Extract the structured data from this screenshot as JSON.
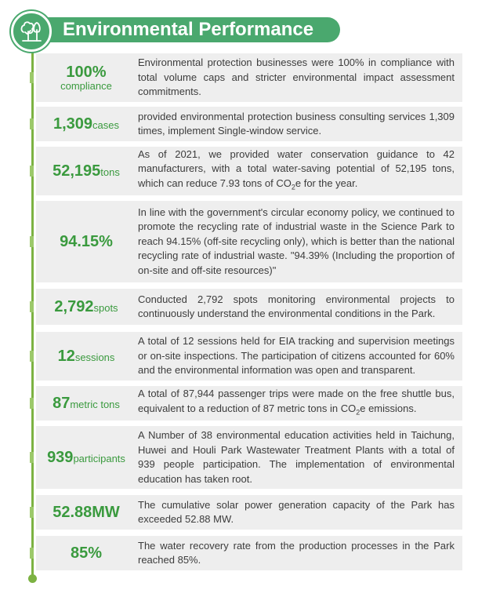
{
  "header": {
    "title": "Environmental Performance",
    "icon": "tree-icon"
  },
  "colors": {
    "accent_green": "#4aa86e",
    "metric_green": "#3a9a3e",
    "timeline_green": "#7cb242",
    "row_bg": "#eeeeee"
  },
  "rows": [
    {
      "value": "100%",
      "unit": "compliance",
      "text": "Environmental protection businesses were 100% in compliance with total volume caps and stricter environmental impact assessment commitments."
    },
    {
      "value": "1,309",
      "unit": "cases",
      "text": "provided environmental protection business consulting services 1,309 times, implement Single-window service."
    },
    {
      "value": "52,195",
      "unit": "tons",
      "text_pre": "As of 2021, we provided water conservation guidance to 42 manufacturers, with a total water-saving potential of 52,195 tons, which can reduce 7.93 tons of CO",
      "sub": "2",
      "text_post": "e for the year."
    },
    {
      "value": "94.15%",
      "unit": "",
      "text": "In line with the government's circular economy policy, we continued to promote the recycling rate of industrial waste in the Science Park to reach 94.15% (off-site recycling only), which is better than the national recycling rate of industrial waste. \"94.39% (Including the proportion of on-site and off-site resources)\""
    },
    {
      "value": "2,792",
      "unit": "spots",
      "text": "Conducted 2,792 spots monitoring environmental projects to continuously understand the environmental conditions in the Park."
    },
    {
      "value": "12",
      "unit": "sessions",
      "text": "A total of 12 sessions held for EIA tracking and supervision meetings or on-site inspections. The participation of citizens accounted for 60% and the environmental information was open and transparent."
    },
    {
      "value": "87",
      "unit": "metric tons",
      "text_pre": "A total of 87,944 passenger trips were made on the free shuttle bus, equivalent to a reduction of 87 metric tons in CO",
      "sub": "2",
      "text_post": "e emissions."
    },
    {
      "value": "939",
      "unit": "participants",
      "text": "A Number of 38 environmental education activities held in Taichung, Huwei and Houli Park Wastewater Treatment Plants with a total of 939 people participation. The implementation of environmental education has taken root."
    },
    {
      "value": "52.88MW",
      "unit": "",
      "text": "The cumulative solar power generation capacity of the Park has exceeded 52.88 MW."
    },
    {
      "value": "85%",
      "unit": "",
      "text": "The water recovery rate from the production processes in the Park reached 85%."
    }
  ]
}
